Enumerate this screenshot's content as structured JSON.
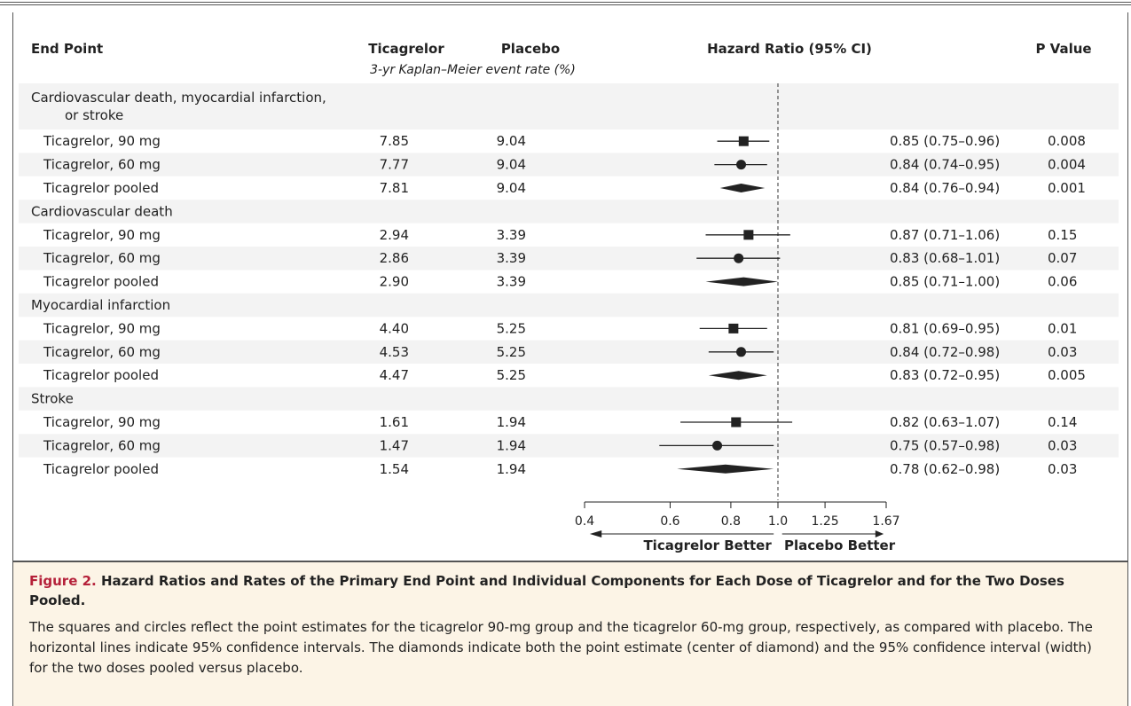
{
  "columns": {
    "end_point": "End Point",
    "ticagrelor": "Ticagrelor",
    "placebo": "Placebo",
    "hazard_ratio": "Hazard Ratio (95% CI)",
    "p_value": "P Value",
    "subheader": "3-yr Kaplan–Meier event rate (%)"
  },
  "rows": [
    {
      "kind": "group",
      "label": "Cardiovascular death, myocardial infarction,",
      "label2": "or stroke"
    },
    {
      "kind": "item",
      "label": "Ticagrelor, 90 mg",
      "tic": "7.85",
      "pla": "9.04",
      "hr_text": "0.85 (0.75–0.96)",
      "p": "0.008",
      "marker": "square",
      "hr": 0.85,
      "lo": 0.75,
      "hi": 0.96
    },
    {
      "kind": "item",
      "label": "Ticagrelor, 60 mg",
      "tic": "7.77",
      "pla": "9.04",
      "hr_text": "0.84 (0.74–0.95)",
      "p": "0.004",
      "marker": "circle",
      "hr": 0.84,
      "lo": 0.74,
      "hi": 0.95
    },
    {
      "kind": "item",
      "label": "Ticagrelor pooled",
      "tic": "7.81",
      "pla": "9.04",
      "hr_text": "0.84 (0.76–0.94)",
      "p": "0.001",
      "marker": "diamond",
      "hr": 0.84,
      "lo": 0.76,
      "hi": 0.94
    },
    {
      "kind": "group",
      "label": "Cardiovascular death"
    },
    {
      "kind": "item",
      "label": "Ticagrelor, 90 mg",
      "tic": "2.94",
      "pla": "3.39",
      "hr_text": "0.87 (0.71–1.06)",
      "p": "0.15",
      "marker": "square",
      "hr": 0.87,
      "lo": 0.71,
      "hi": 1.06
    },
    {
      "kind": "item",
      "label": "Ticagrelor, 60 mg",
      "tic": "2.86",
      "pla": "3.39",
      "hr_text": "0.83 (0.68–1.01)",
      "p": "0.07",
      "marker": "circle",
      "hr": 0.83,
      "lo": 0.68,
      "hi": 1.01
    },
    {
      "kind": "item",
      "label": "Ticagrelor pooled",
      "tic": "2.90",
      "pla": "3.39",
      "hr_text": "0.85 (0.71–1.00)",
      "p": "0.06",
      "marker": "diamond",
      "hr": 0.85,
      "lo": 0.71,
      "hi": 1.0
    },
    {
      "kind": "group",
      "label": "Myocardial infarction"
    },
    {
      "kind": "item",
      "label": "Ticagrelor, 90 mg",
      "tic": "4.40",
      "pla": "5.25",
      "hr_text": "0.81 (0.69–0.95)",
      "p": "0.01",
      "marker": "square",
      "hr": 0.81,
      "lo": 0.69,
      "hi": 0.95
    },
    {
      "kind": "item",
      "label": "Ticagrelor, 60 mg",
      "tic": "4.53",
      "pla": "5.25",
      "hr_text": "0.84 (0.72–0.98)",
      "p": "0.03",
      "marker": "circle",
      "hr": 0.84,
      "lo": 0.72,
      "hi": 0.98
    },
    {
      "kind": "item",
      "label": "Ticagrelor pooled",
      "tic": "4.47",
      "pla": "5.25",
      "hr_text": "0.83 (0.72–0.95)",
      "p": "0.005",
      "marker": "diamond",
      "hr": 0.83,
      "lo": 0.72,
      "hi": 0.95
    },
    {
      "kind": "group",
      "label": "Stroke"
    },
    {
      "kind": "item",
      "label": "Ticagrelor, 90 mg",
      "tic": "1.61",
      "pla": "1.94",
      "hr_text": "0.82 (0.63–1.07)",
      "p": "0.14",
      "marker": "square",
      "hr": 0.82,
      "lo": 0.63,
      "hi": 1.07
    },
    {
      "kind": "item",
      "label": "Ticagrelor, 60 mg",
      "tic": "1.47",
      "pla": "1.94",
      "hr_text": "0.75 (0.57–0.98)",
      "p": "0.03",
      "marker": "circle",
      "hr": 0.75,
      "lo": 0.57,
      "hi": 0.98
    },
    {
      "kind": "item",
      "label": "Ticagrelor pooled",
      "tic": "1.54",
      "pla": "1.94",
      "hr_text": "0.78 (0.62–0.98)",
      "p": "0.03",
      "marker": "diamond",
      "hr": 0.78,
      "lo": 0.62,
      "hi": 0.98
    }
  ],
  "chart_data": {
    "type": "forest",
    "xscale": "log",
    "xlim": [
      0.4,
      1.67
    ],
    "ticks": [
      {
        "value": 0.4,
        "label": "0.4"
      },
      {
        "value": 0.6,
        "label": "0.6"
      },
      {
        "value": 0.8,
        "label": "0.8"
      },
      {
        "value": 1.0,
        "label": "1.0"
      },
      {
        "value": 1.25,
        "label": "1.25"
      },
      {
        "value": 1.67,
        "label": "1.67"
      }
    ],
    "reference_line": 1.0,
    "left_label": "Ticagrelor Better",
    "right_label": "Placebo Better"
  },
  "caption": {
    "figure_label": "Figure 2.",
    "title": "Hazard Ratios and Rates of the Primary End Point and Individual Components for Each Dose of Ticagrelor and for the Two Doses Pooled.",
    "body": "The squares and circles reflect the point estimates for the ticagrelor 90-mg group and the ticagrelor 60-mg group, respectively, as compared with placebo. The horizontal lines indicate 95% confidence intervals. The diamonds indicate both the point estimate (center of diamond) and the 95% confidence interval (width) for the two doses pooled versus placebo."
  },
  "colors": {
    "band": "#f3f3f3",
    "caption_bg": "#fcf4e6",
    "figure_label": "#b5213a",
    "ink": "#222222"
  }
}
